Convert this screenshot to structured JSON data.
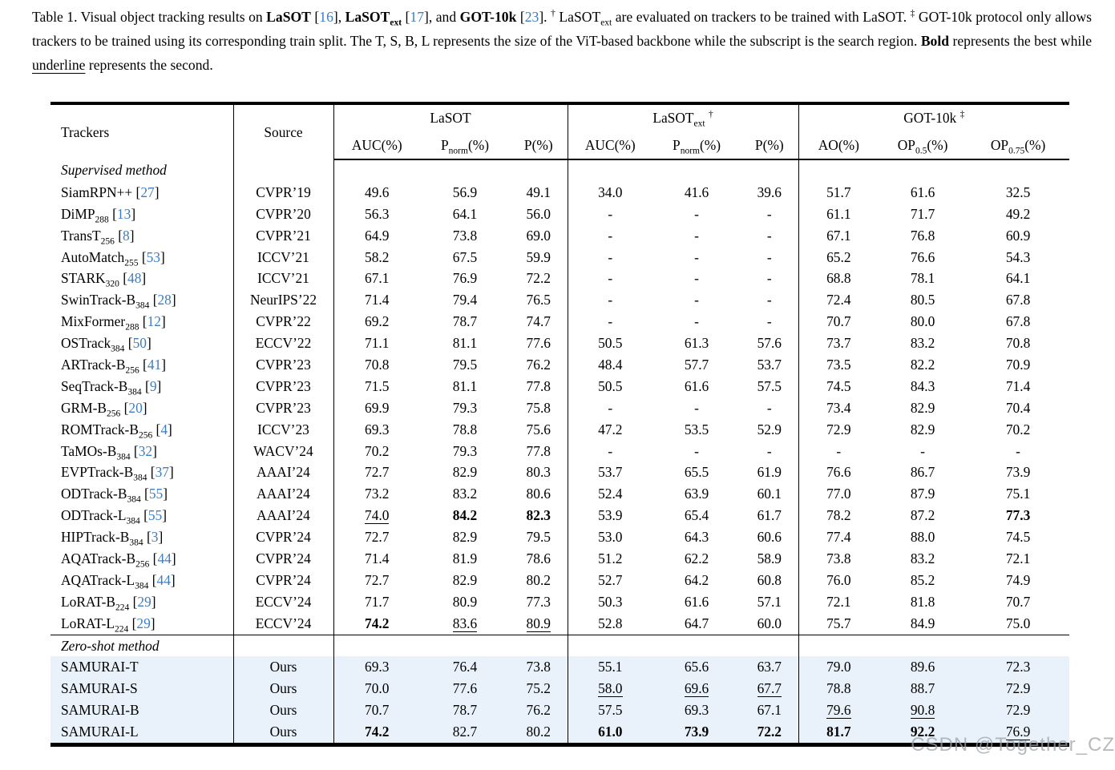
{
  "caption": {
    "segments": [
      {
        "t": "Table 1.  Visual object tracking results on ",
        "s": ""
      },
      {
        "t": "LaSOT",
        "s": "b"
      },
      {
        "t": " [",
        "s": ""
      },
      {
        "t": "16",
        "s": "c"
      },
      {
        "t": "], ",
        "s": ""
      },
      {
        "t": "LaSOT",
        "s": "b"
      },
      {
        "t": "ext",
        "s": "bsub"
      },
      {
        "t": " [",
        "s": ""
      },
      {
        "t": "17",
        "s": "c"
      },
      {
        "t": "], and ",
        "s": ""
      },
      {
        "t": "GOT-10k",
        "s": "b"
      },
      {
        "t": " [",
        "s": ""
      },
      {
        "t": "23",
        "s": "c"
      },
      {
        "t": "].  ",
        "s": ""
      },
      {
        "t": "†",
        "s": "sup"
      },
      {
        "t": " LaSOT",
        "s": ""
      },
      {
        "t": "ext",
        "s": "sub"
      },
      {
        "t": " are evaluated on trackers to be trained with LaSOT. ",
        "s": ""
      },
      {
        "t": "‡",
        "s": "sup"
      },
      {
        "t": " GOT-10k protocol only allows trackers to be trained using its corresponding train split. The T, S, B, L represents the size of the ViT-based backbone while the subscript is the search region. ",
        "s": ""
      },
      {
        "t": "Bold",
        "s": "b"
      },
      {
        "t": " represents the best while ",
        "s": ""
      },
      {
        "t": "underline",
        "s": "u"
      },
      {
        "t": " represents the second.",
        "s": ""
      }
    ]
  },
  "header": {
    "trackers": "Trackers",
    "source": "Source",
    "groups": [
      {
        "pre": "LaSOT",
        "sub": "",
        "sup": ""
      },
      {
        "pre": "LaSOT",
        "sub": "ext",
        "sup": "†"
      },
      {
        "pre": "GOT-10k",
        "sub": "",
        "sup": "‡"
      }
    ],
    "cols": [
      {
        "pre": "AUC",
        "sub": "",
        "post": "(%)"
      },
      {
        "pre": "P",
        "sub": "norm",
        "post": "(%)"
      },
      {
        "pre": "P",
        "sub": "",
        "post": "(%)"
      },
      {
        "pre": "AUC",
        "sub": "",
        "post": "(%)"
      },
      {
        "pre": "P",
        "sub": "norm",
        "post": "(%)"
      },
      {
        "pre": "P",
        "sub": "",
        "post": "(%)"
      },
      {
        "pre": "AO",
        "sub": "",
        "post": "(%)"
      },
      {
        "pre": "OP",
        "sub": "0.5",
        "post": "(%)"
      },
      {
        "pre": "OP",
        "sub": "0.75",
        "post": "(%)"
      }
    ]
  },
  "table": {
    "rows": [
      {
        "section": "Supervised method",
        "mid": false
      },
      {
        "tracker": {
          "name": "SiamRPN++",
          "sub": "",
          "cite": "27"
        },
        "source": "CVPR’19",
        "values": [
          "49.6",
          "56.9",
          "49.1",
          "34.0",
          "41.6",
          "39.6",
          "51.7",
          "61.6",
          "32.5"
        ],
        "styles": [
          "",
          "",
          "",
          "",
          "",
          "",
          "",
          "",
          ""
        ]
      },
      {
        "tracker": {
          "name": "DiMP",
          "sub": "288",
          "cite": "13"
        },
        "source": "CVPR’20",
        "values": [
          "56.3",
          "64.1",
          "56.0",
          "-",
          "-",
          "-",
          "61.1",
          "71.7",
          "49.2"
        ],
        "styles": [
          "",
          "",
          "",
          "",
          "",
          "",
          "",
          "",
          ""
        ]
      },
      {
        "tracker": {
          "name": "TransT",
          "sub": "256",
          "cite": "8"
        },
        "source": "CVPR’21",
        "values": [
          "64.9",
          "73.8",
          "69.0",
          "-",
          "-",
          "-",
          "67.1",
          "76.8",
          "60.9"
        ],
        "styles": [
          "",
          "",
          "",
          "",
          "",
          "",
          "",
          "",
          ""
        ]
      },
      {
        "tracker": {
          "name": "AutoMatch",
          "sub": "255",
          "cite": "53"
        },
        "source": "ICCV’21",
        "values": [
          "58.2",
          "67.5",
          "59.9",
          "-",
          "-",
          "-",
          "65.2",
          "76.6",
          "54.3"
        ],
        "styles": [
          "",
          "",
          "",
          "",
          "",
          "",
          "",
          "",
          ""
        ]
      },
      {
        "tracker": {
          "name": "STARK",
          "sub": "320",
          "cite": "48"
        },
        "source": "ICCV’21",
        "values": [
          "67.1",
          "76.9",
          "72.2",
          "-",
          "-",
          "-",
          "68.8",
          "78.1",
          "64.1"
        ],
        "styles": [
          "",
          "",
          "",
          "",
          "",
          "",
          "",
          "",
          ""
        ]
      },
      {
        "tracker": {
          "name": "SwinTrack-B",
          "sub": "384",
          "cite": "28"
        },
        "source": "NeurIPS’22",
        "values": [
          "71.4",
          "79.4",
          "76.5",
          "-",
          "-",
          "-",
          "72.4",
          "80.5",
          "67.8"
        ],
        "styles": [
          "",
          "",
          "",
          "",
          "",
          "",
          "",
          "",
          ""
        ]
      },
      {
        "tracker": {
          "name": "MixFormer",
          "sub": "288",
          "cite": "12"
        },
        "source": "CVPR’22",
        "values": [
          "69.2",
          "78.7",
          "74.7",
          "-",
          "-",
          "-",
          "70.7",
          "80.0",
          "67.8"
        ],
        "styles": [
          "",
          "",
          "",
          "",
          "",
          "",
          "",
          "",
          ""
        ]
      },
      {
        "tracker": {
          "name": "OSTrack",
          "sub": "384",
          "cite": "50"
        },
        "source": "ECCV’22",
        "values": [
          "71.1",
          "81.1",
          "77.6",
          "50.5",
          "61.3",
          "57.6",
          "73.7",
          "83.2",
          "70.8"
        ],
        "styles": [
          "",
          "",
          "",
          "",
          "",
          "",
          "",
          "",
          ""
        ]
      },
      {
        "tracker": {
          "name": "ARTrack-B",
          "sub": "256",
          "cite": "41"
        },
        "source": "CVPR’23",
        "values": [
          "70.8",
          "79.5",
          "76.2",
          "48.4",
          "57.7",
          "53.7",
          "73.5",
          "82.2",
          "70.9"
        ],
        "styles": [
          "",
          "",
          "",
          "",
          "",
          "",
          "",
          "",
          ""
        ]
      },
      {
        "tracker": {
          "name": "SeqTrack-B",
          "sub": "384",
          "cite": "9"
        },
        "source": "CVPR’23",
        "values": [
          "71.5",
          "81.1",
          "77.8",
          "50.5",
          "61.6",
          "57.5",
          "74.5",
          "84.3",
          "71.4"
        ],
        "styles": [
          "",
          "",
          "",
          "",
          "",
          "",
          "",
          "",
          ""
        ]
      },
      {
        "tracker": {
          "name": "GRM-B",
          "sub": "256",
          "cite": "20"
        },
        "source": "CVPR’23",
        "values": [
          "69.9",
          "79.3",
          "75.8",
          "-",
          "-",
          "-",
          "73.4",
          "82.9",
          "70.4"
        ],
        "styles": [
          "",
          "",
          "",
          "",
          "",
          "",
          "",
          "",
          ""
        ]
      },
      {
        "tracker": {
          "name": "ROMTrack-B",
          "sub": "256",
          "cite": "4"
        },
        "source": "ICCV’23",
        "values": [
          "69.3",
          "78.8",
          "75.6",
          "47.2",
          "53.5",
          "52.9",
          "72.9",
          "82.9",
          "70.2"
        ],
        "styles": [
          "",
          "",
          "",
          "",
          "",
          "",
          "",
          "",
          ""
        ]
      },
      {
        "tracker": {
          "name": "TaMOs-B",
          "sub": "384",
          "cite": "32"
        },
        "source": "WACV’24",
        "values": [
          "70.2",
          "79.3",
          "77.8",
          "-",
          "-",
          "-",
          "-",
          "-",
          "-"
        ],
        "styles": [
          "",
          "",
          "",
          "",
          "",
          "",
          "",
          "",
          ""
        ]
      },
      {
        "tracker": {
          "name": "EVPTrack-B",
          "sub": "384",
          "cite": "37"
        },
        "source": "AAAI’24",
        "values": [
          "72.7",
          "82.9",
          "80.3",
          "53.7",
          "65.5",
          "61.9",
          "76.6",
          "86.7",
          "73.9"
        ],
        "styles": [
          "",
          "",
          "",
          "",
          "",
          "",
          "",
          "",
          ""
        ]
      },
      {
        "tracker": {
          "name": "ODTrack-B",
          "sub": "384",
          "cite": "55"
        },
        "source": "AAAI’24",
        "values": [
          "73.2",
          "83.2",
          "80.6",
          "52.4",
          "63.9",
          "60.1",
          "77.0",
          "87.9",
          "75.1"
        ],
        "styles": [
          "",
          "",
          "",
          "",
          "",
          "",
          "",
          "",
          ""
        ]
      },
      {
        "tracker": {
          "name": "ODTrack-L",
          "sub": "384",
          "cite": "55"
        },
        "source": "AAAI’24",
        "values": [
          "74.0",
          "84.2",
          "82.3",
          "53.9",
          "65.4",
          "61.7",
          "78.2",
          "87.2",
          "77.3"
        ],
        "styles": [
          "u",
          "b",
          "b",
          "",
          "",
          "",
          "",
          "",
          "b"
        ]
      },
      {
        "tracker": {
          "name": "HIPTrack-B",
          "sub": "384",
          "cite": "3"
        },
        "source": "CVPR’24",
        "values": [
          "72.7",
          "82.9",
          "79.5",
          "53.0",
          "64.3",
          "60.6",
          "77.4",
          "88.0",
          "74.5"
        ],
        "styles": [
          "",
          "",
          "",
          "",
          "",
          "",
          "",
          "",
          ""
        ]
      },
      {
        "tracker": {
          "name": "AQATrack-B",
          "sub": "256",
          "cite": "44"
        },
        "source": "CVPR’24",
        "values": [
          "71.4",
          "81.9",
          "78.6",
          "51.2",
          "62.2",
          "58.9",
          "73.8",
          "83.2",
          "72.1"
        ],
        "styles": [
          "",
          "",
          "",
          "",
          "",
          "",
          "",
          "",
          ""
        ]
      },
      {
        "tracker": {
          "name": "AQATrack-L",
          "sub": "384",
          "cite": "44"
        },
        "source": "CVPR’24",
        "values": [
          "72.7",
          "82.9",
          "80.2",
          "52.7",
          "64.2",
          "60.8",
          "76.0",
          "85.2",
          "74.9"
        ],
        "styles": [
          "",
          "",
          "",
          "",
          "",
          "",
          "",
          "",
          ""
        ]
      },
      {
        "tracker": {
          "name": "LoRAT-B",
          "sub": "224",
          "cite": "29"
        },
        "source": "ECCV’24",
        "values": [
          "71.7",
          "80.9",
          "77.3",
          "50.3",
          "61.6",
          "57.1",
          "72.1",
          "81.8",
          "70.7"
        ],
        "styles": [
          "",
          "",
          "",
          "",
          "",
          "",
          "",
          "",
          ""
        ]
      },
      {
        "tracker": {
          "name": "LoRAT-L",
          "sub": "224",
          "cite": "29"
        },
        "source": "ECCV’24",
        "values": [
          "74.2",
          "83.6",
          "80.9",
          "52.8",
          "64.7",
          "60.0",
          "75.7",
          "84.9",
          "75.0"
        ],
        "styles": [
          "b",
          "u",
          "u",
          "",
          "",
          "",
          "",
          "",
          ""
        ]
      },
      {
        "section": "Zero-shot method",
        "mid": true
      },
      {
        "tracker": {
          "name": "SAMURAI-T",
          "sub": "",
          "cite": ""
        },
        "source": "Ours",
        "highlight": true,
        "values": [
          "69.3",
          "76.4",
          "73.8",
          "55.1",
          "65.6",
          "63.7",
          "79.0",
          "89.6",
          "72.3"
        ],
        "styles": [
          "",
          "",
          "",
          "",
          "",
          "",
          "",
          "",
          ""
        ]
      },
      {
        "tracker": {
          "name": "SAMURAI-S",
          "sub": "",
          "cite": ""
        },
        "source": "Ours",
        "highlight": true,
        "values": [
          "70.0",
          "77.6",
          "75.2",
          "58.0",
          "69.6",
          "67.7",
          "78.8",
          "88.7",
          "72.9"
        ],
        "styles": [
          "",
          "",
          "",
          "u",
          "u",
          "u",
          "",
          "",
          ""
        ]
      },
      {
        "tracker": {
          "name": "SAMURAI-B",
          "sub": "",
          "cite": ""
        },
        "source": "Ours",
        "highlight": true,
        "values": [
          "70.7",
          "78.7",
          "76.2",
          "57.5",
          "69.3",
          "67.1",
          "79.6",
          "90.8",
          "72.9"
        ],
        "styles": [
          "",
          "",
          "",
          "",
          "",
          "",
          "u",
          "u",
          ""
        ]
      },
      {
        "tracker": {
          "name": "SAMURAI-L",
          "sub": "",
          "cite": ""
        },
        "source": "Ours",
        "highlight": true,
        "values": [
          "74.2",
          "82.7",
          "80.2",
          "61.0",
          "73.9",
          "72.2",
          "81.7",
          "92.2",
          "76.9"
        ],
        "styles": [
          "b",
          "",
          "",
          "b",
          "b",
          "b",
          "b",
          "b",
          "u"
        ]
      }
    ]
  },
  "watermark": "CSDN @Together_CZ",
  "colors": {
    "cite": "#3d7dc2",
    "highlight": "#e9f2fb",
    "watermark": "#9ea3aa"
  }
}
